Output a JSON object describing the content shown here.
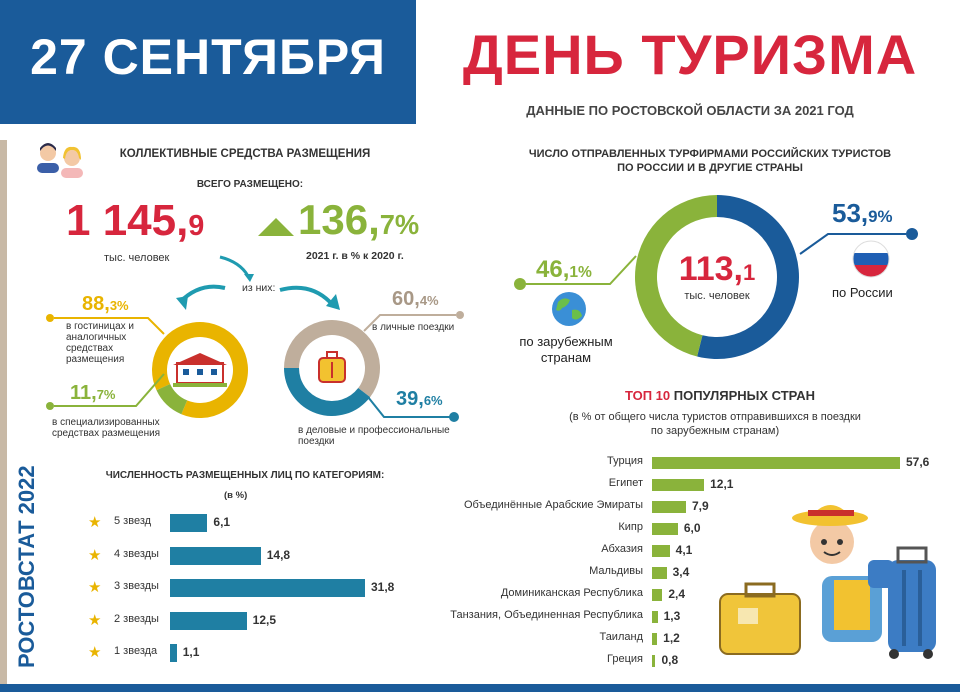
{
  "header": {
    "date": "27 СЕНТЯБРЯ",
    "title": "ДЕНЬ ТУРИЗМА",
    "subtitle": "ДАННЫЕ ПО РОСТОВСКОЙ ОБЛАСТИ ЗА 2021 ГОД"
  },
  "vertical_label": "РОСТОВСТАТ 2022",
  "accommodation": {
    "title": "КОЛЛЕКТИВНЫЕ СРЕДСТВА РАЗМЕЩЕНИЯ",
    "total_label": "ВСЕГО РАЗМЕЩЕНО:",
    "total_int": "1 145,",
    "total_dec": "9",
    "total_unit": "тыс. человек",
    "growth_int": "136,",
    "growth_dec": "7%",
    "growth_note": "2021 г. в % к 2020 г.",
    "of_them": "из них:",
    "hotels_int": "88,",
    "hotels_dec": "3%",
    "hotels_label": "в гостиницах и аналогичных средствах размещения",
    "special_int": "11,",
    "special_dec": "7%",
    "special_label": "в специализированных средствах размещения",
    "personal_int": "60,",
    "personal_dec": "4%",
    "personal_label": "в личные поездки",
    "business_int": "39,",
    "business_dec": "6%",
    "business_label": "в деловые и профессиональные поездки"
  },
  "categories": {
    "title": "ЧИСЛЕННОСТЬ РАЗМЕЩЕННЫХ ЛИЦ ПО КАТЕГОРИЯМ:",
    "unit": "(в %)"
  },
  "tourists": {
    "title_line1": "ЧИСЛО ОТПРАВЛЕННЫХ ТУРФИРМАМИ РОССИЙСКИХ ТУРИСТОВ",
    "title_line2": "ПО РОССИИ И В ДРУГИЕ СТРАНЫ",
    "center_int": "113,",
    "center_dec": "1",
    "center_unit": "тыс. человек",
    "abroad_int": "46,",
    "abroad_dec": "1%",
    "abroad_label_1": "по зарубежным",
    "abroad_label_2": "странам",
    "russia_int": "53,",
    "russia_dec": "9%",
    "russia_label": "по России"
  },
  "top10": {
    "title_bold": "ТОП 10",
    "title_rest": " ПОПУЛЯРНЫХ СТРАН",
    "note_1": "(в % от общего числа туристов отправившихся в поездки",
    "note_2": "по зарубежным странам)"
  },
  "colors": {
    "blue": "#1a5b9a",
    "red": "#d7263d",
    "green": "#8ab33b",
    "yellow": "#e9b400",
    "beige": "#bfae9c",
    "teal": "#1f7fa3",
    "star": "#e9b400"
  },
  "chart_data": [
    {
      "type": "pie",
      "name": "accommodation-split",
      "slices": [
        {
          "label": "в гостиницах и аналогичных средствах размещения",
          "value": 88.3
        },
        {
          "label": "в специализированных средствах размещения",
          "value": 11.7
        }
      ]
    },
    {
      "type": "pie",
      "name": "trip-purpose",
      "slices": [
        {
          "label": "в личные поездки",
          "value": 60.4
        },
        {
          "label": "в деловые и профессиональные поездки",
          "value": 39.6
        }
      ]
    },
    {
      "type": "pie",
      "name": "tourists-destination",
      "slices": [
        {
          "label": "по России",
          "value": 53.9
        },
        {
          "label": "по зарубежным странам",
          "value": 46.1
        }
      ]
    },
    {
      "type": "bar",
      "name": "categories",
      "categories": [
        "5 звезд",
        "4 звезды",
        "3 звезды",
        "2 звезды",
        "1 звезда"
      ],
      "values": [
        6.1,
        14.8,
        31.8,
        12.5,
        1.1
      ],
      "labels": [
        "6,1",
        "14,8",
        "31,8",
        "12,5",
        "1,1"
      ],
      "xlim": [
        0,
        31.8
      ]
    },
    {
      "type": "bar",
      "name": "top10",
      "categories": [
        "Турция",
        "Египет",
        "Объединённые Арабские Эмираты",
        "Кипр",
        "Абхазия",
        "Мальдивы",
        "Доминиканская Республика",
        "Танзания, Объединенная Республика",
        "Таиланд",
        "Греция"
      ],
      "values": [
        57.6,
        12.1,
        7.9,
        6.0,
        4.1,
        3.4,
        2.4,
        1.3,
        1.2,
        0.8
      ],
      "labels": [
        "57,6",
        "12,1",
        "7,9",
        "6,0",
        "4,1",
        "3,4",
        "2,4",
        "1,3",
        "1,2",
        "0,8"
      ],
      "xlim": [
        0,
        57.6
      ]
    }
  ]
}
